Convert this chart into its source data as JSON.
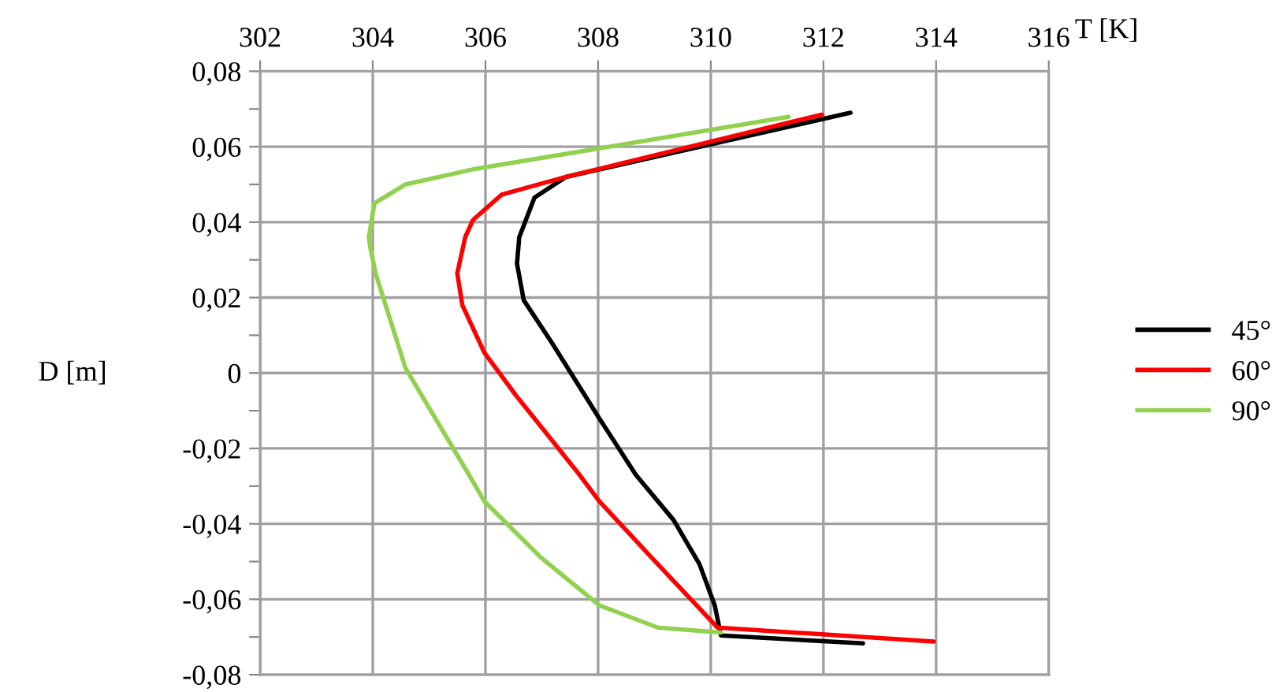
{
  "chart_data": {
    "type": "line",
    "xlabel": "T [K]",
    "ylabel": "D [m]",
    "xlim": [
      302,
      316
    ],
    "xticks": [
      302,
      304,
      306,
      308,
      310,
      312,
      314,
      316
    ],
    "ylim": [
      -0.08,
      0.08
    ],
    "yticks": [
      {
        "value": -0.08,
        "label": "-0,08"
      },
      {
        "value": -0.07,
        "label": null
      },
      {
        "value": -0.06,
        "label": "-0,06"
      },
      {
        "value": -0.05,
        "label": null
      },
      {
        "value": -0.04,
        "label": "-0,04"
      },
      {
        "value": -0.03,
        "label": null
      },
      {
        "value": -0.02,
        "label": "-0,02"
      },
      {
        "value": -0.01,
        "label": null
      },
      {
        "value": 0,
        "label": "0"
      },
      {
        "value": 0.01,
        "label": null
      },
      {
        "value": 0.02,
        "label": "0,02"
      },
      {
        "value": 0.03,
        "label": null
      },
      {
        "value": 0.04,
        "label": "0,04"
      },
      {
        "value": 0.05,
        "label": null
      },
      {
        "value": 0.06,
        "label": "0,06"
      },
      {
        "value": 0.07,
        "label": null
      },
      {
        "value": 0.08,
        "label": "0,08"
      }
    ],
    "grid": true,
    "legend": "right",
    "series": [
      {
        "name": "45°",
        "color": "#000000",
        "x": [
          312.48,
          307.43,
          306.87,
          306.6,
          306.56,
          306.68,
          307.18,
          308.02,
          308.67,
          309.34,
          309.8,
          310.07,
          310.18,
          312.7
        ],
        "values": [
          0.069,
          0.052,
          0.0465,
          0.036,
          0.029,
          0.0193,
          0.008,
          -0.012,
          -0.027,
          -0.039,
          -0.0507,
          -0.0616,
          -0.0696,
          -0.0717
        ]
      },
      {
        "name": "60°",
        "color": "#ff0000",
        "x": [
          311.97,
          307.43,
          306.29,
          305.78,
          305.64,
          305.5,
          305.59,
          305.98,
          306.54,
          307.66,
          308.02,
          309.06,
          310.12,
          313.96
        ],
        "values": [
          0.0685,
          0.052,
          0.0473,
          0.0406,
          0.036,
          0.0264,
          0.018,
          0.0054,
          -0.0059,
          -0.0268,
          -0.034,
          -0.0507,
          -0.0675,
          -0.0712
        ]
      },
      {
        "name": "90°",
        "color": "#92d050",
        "x": [
          311.38,
          305.78,
          304.58,
          304.03,
          303.93,
          303.96,
          304.05,
          304.58,
          305.7,
          305.98,
          306.99,
          308.02,
          309.06,
          310.18
        ],
        "values": [
          0.0679,
          0.054,
          0.05,
          0.045,
          0.036,
          0.033,
          0.0264,
          0.0013,
          -0.0268,
          -0.034,
          -0.049,
          -0.0616,
          -0.0675,
          -0.0688
        ]
      }
    ]
  }
}
